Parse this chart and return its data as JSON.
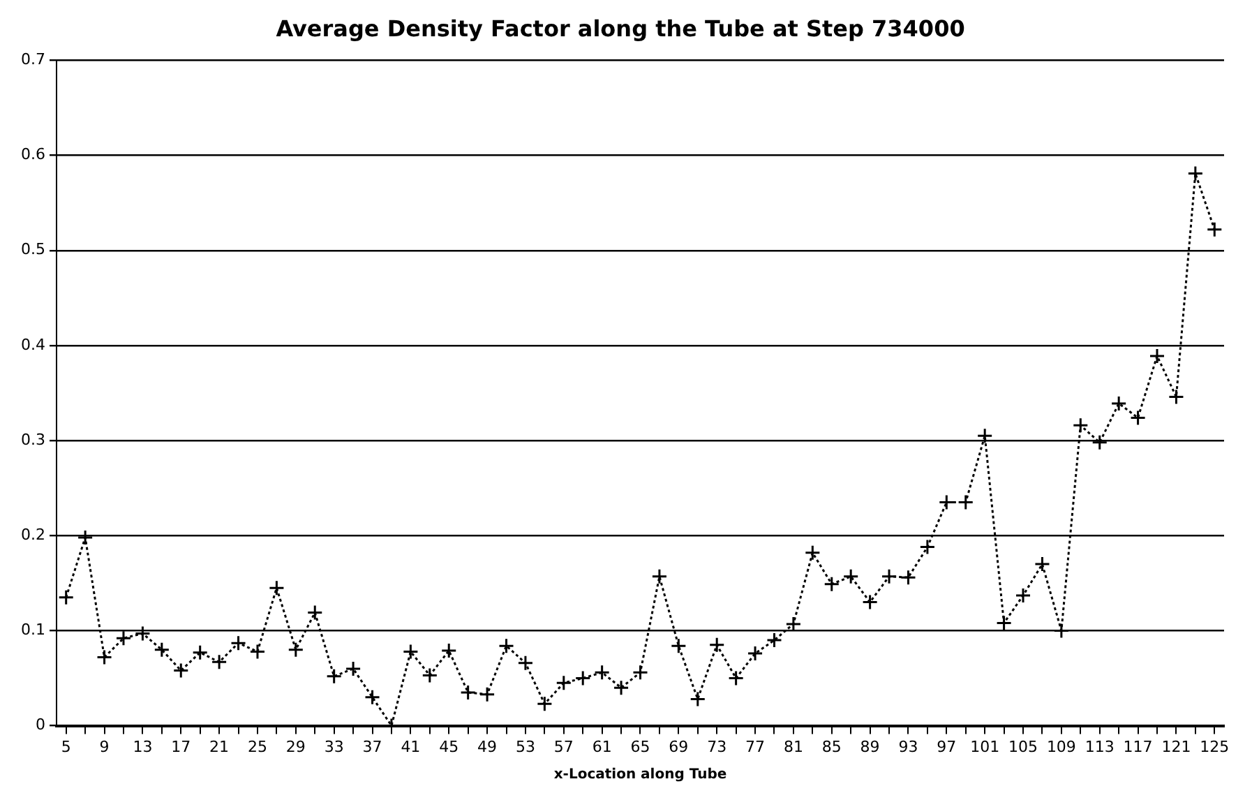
{
  "chart_data": {
    "type": "line",
    "title": "Average Density Factor along the Tube at Step 734000",
    "xlabel": "x-Location along Tube",
    "categories": [
      "5",
      null,
      "9",
      null,
      "13",
      null,
      "17",
      null,
      "21",
      null,
      "25",
      null,
      "29",
      null,
      "33",
      null,
      "37",
      null,
      "41",
      null,
      "45",
      null,
      "49",
      null,
      "53",
      null,
      "57",
      null,
      "61",
      null,
      "65",
      null,
      "69",
      null,
      "73",
      null,
      "77",
      null,
      "81",
      null,
      "85",
      null,
      "89",
      null,
      "93",
      null,
      "97",
      null,
      "101",
      null,
      "105",
      null,
      "109",
      null,
      "113",
      null,
      "117",
      null,
      "121",
      null,
      "125"
    ],
    "series": [
      {
        "color": "#000000",
        "values": [
          0.135,
          0.198,
          0.072,
          0.092,
          0.097,
          0.08,
          0.058,
          0.077,
          0.067,
          0.087,
          0.078,
          0.145,
          0.08,
          0.119,
          0.052,
          0.06,
          0.03,
          0,
          0.078,
          0.053,
          0.079,
          0.035,
          0.033,
          0.084,
          0.066,
          0.023,
          0.045,
          0.05,
          0.056,
          0.04,
          0.056,
          0.157,
          0.084,
          0.028,
          0.085,
          0.05,
          0.076,
          0.09,
          0.107,
          0.182,
          0.149,
          0.157,
          0.13,
          0.157,
          0.156,
          0.188,
          0.235,
          0.235,
          0.305,
          0.108,
          0.137,
          0.17,
          0.1,
          0.316,
          0.298,
          0.339,
          0.324,
          0.389,
          0.346,
          0.581,
          0.522
        ]
      }
    ],
    "ylim": [
      0,
      0.7
    ],
    "yticks": [
      0,
      0.1,
      0.2,
      0.3,
      0.4,
      0.5,
      0.6,
      0.7
    ],
    "grid": "y",
    "legend": false,
    "marker": "cross",
    "line_style": "dotted"
  }
}
